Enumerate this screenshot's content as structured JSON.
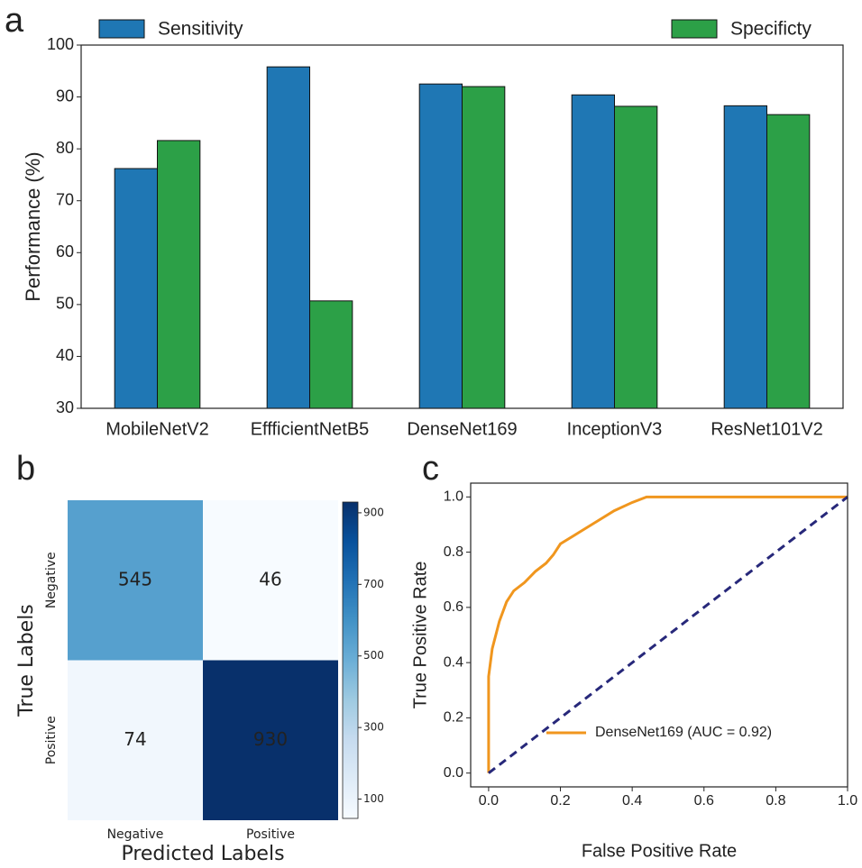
{
  "chart_data": [
    {
      "type": "bar",
      "panel": "a",
      "ylabel": "Performance (%)",
      "categories": [
        "MobileNetV2",
        "EffficientNetB5",
        "DenseNet169",
        "InceptionV3",
        "ResNet101V2"
      ],
      "series": [
        {
          "name": "Sensitivity",
          "color": "#1f77b4",
          "values": [
            76.2,
            95.8,
            92.5,
            90.4,
            88.3
          ]
        },
        {
          "name": "Specificty",
          "color": "#2ca047",
          "values": [
            81.6,
            50.7,
            92.0,
            88.2,
            86.6
          ]
        }
      ],
      "ylim": [
        30,
        100
      ],
      "yticks": [
        30,
        40,
        50,
        60,
        70,
        80,
        90,
        100
      ]
    },
    {
      "type": "heatmap",
      "panel": "b",
      "xlabel": "Predicted Labels",
      "ylabel": "True Labels",
      "x_categories": [
        "Negative",
        "Positive"
      ],
      "y_categories": [
        "Negative",
        "Positive"
      ],
      "values": [
        [
          545,
          46
        ],
        [
          74,
          930
        ]
      ],
      "colormap": "Blues",
      "clim": [
        46,
        930
      ],
      "colorbar_ticks": [
        100,
        300,
        500,
        700,
        900
      ]
    },
    {
      "type": "line",
      "panel": "c",
      "xlabel": "False Positive Rate",
      "ylabel": "True Positive Rate",
      "series": [
        {
          "name": "DenseNet169 (AUC = 0.92)",
          "color": "#f0961e",
          "x": [
            0,
            0,
            0.005,
            0.01,
            0.02,
            0.03,
            0.05,
            0.07,
            0.1,
            0.13,
            0.16,
            0.18,
            0.2,
            0.25,
            0.3,
            0.35,
            0.4,
            0.44,
            1.0
          ],
          "values": [
            0,
            0.35,
            0.4,
            0.45,
            0.5,
            0.55,
            0.62,
            0.66,
            0.69,
            0.73,
            0.76,
            0.79,
            0.83,
            0.87,
            0.91,
            0.95,
            0.98,
            1.0,
            1.0
          ]
        },
        {
          "color": "#27287a",
          "linestyle": "dashed",
          "x": [
            0,
            1
          ],
          "values": [
            0,
            1
          ]
        }
      ],
      "xlim": [
        -0.05,
        1.0
      ],
      "ylim": [
        -0.05,
        1.05
      ],
      "xticks": [
        {
          "value": 0,
          "label": "0.0"
        },
        {
          "value": 0.2,
          "label": "0.2"
        },
        {
          "value": 0.4,
          "label": "0.4"
        },
        {
          "value": 0.6,
          "label": "0.6"
        },
        {
          "value": 0.8,
          "label": "0.8"
        },
        {
          "value": 1,
          "label": "1.0"
        }
      ],
      "yticks": [
        {
          "value": 0,
          "label": "0.0"
        },
        {
          "value": 0.2,
          "label": "0.2"
        },
        {
          "value": 0.4,
          "label": "0.4"
        },
        {
          "value": 0.6,
          "label": "0.6"
        },
        {
          "value": 0.8,
          "label": "0.8"
        },
        {
          "value": 1,
          "label": "1.0"
        }
      ],
      "legend": "lower right"
    }
  ]
}
